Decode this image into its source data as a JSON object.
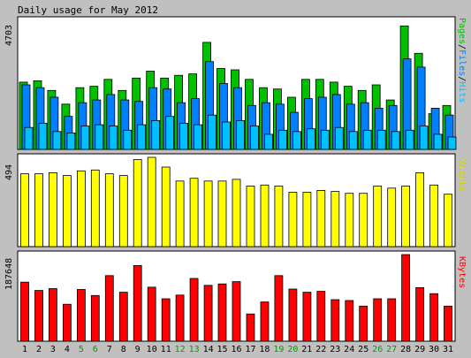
{
  "title": "Daily usage for May 2012",
  "colors": {
    "background": "#c0c0c0",
    "panel": "#ffffff",
    "pages": "#00c000",
    "files": "#0080ff",
    "hits": "#00c0ff",
    "visits": "#ffff00",
    "kbytes": "#ff0000",
    "weekend_label": "#00a000",
    "weekday_label": "#000000",
    "border": "#000000"
  },
  "chart_data": [
    {
      "type": "bar",
      "name": "hits-files-pages",
      "ymax_label": "4703",
      "ymax": 4703,
      "legend": {
        "pages": "Pages",
        "slash1": "/",
        "files": "Files",
        "slash2": "/",
        "hits": "Hits"
      },
      "series": [
        {
          "name": "Hits",
          "color_key": "pages",
          "values": [
            2450,
            2500,
            2150,
            1650,
            2250,
            2300,
            2550,
            2150,
            2600,
            2850,
            2600,
            2700,
            2750,
            3900,
            2950,
            2900,
            2550,
            2250,
            2200,
            1900,
            2550,
            2550,
            2450,
            2300,
            2150,
            2350,
            1800,
            4500,
            3500,
            1300,
            1600
          ]
        },
        {
          "name": "Files",
          "color_key": "files",
          "values": [
            2350,
            2250,
            1900,
            1200,
            1700,
            1800,
            2000,
            1800,
            1750,
            2250,
            2200,
            1700,
            1850,
            3200,
            2400,
            2250,
            1600,
            1700,
            1650,
            1350,
            1850,
            1900,
            2000,
            1650,
            1700,
            1500,
            1600,
            3300,
            3000,
            1500,
            1250
          ]
        },
        {
          "name": "Pages",
          "color_key": "hits",
          "values": [
            800,
            950,
            650,
            600,
            850,
            900,
            850,
            700,
            900,
            1050,
            1200,
            950,
            900,
            1250,
            1000,
            1050,
            850,
            550,
            700,
            650,
            750,
            700,
            800,
            650,
            700,
            700,
            650,
            700,
            850,
            550,
            450
          ]
        }
      ]
    },
    {
      "type": "bar",
      "name": "visits",
      "ymax_label": "494",
      "ymax": 494,
      "legend": "Visits",
      "series": [
        {
          "name": "Visits",
          "color_key": "visits",
          "values": [
            403,
            403,
            409,
            393,
            419,
            424,
            403,
            393,
            482,
            494,
            440,
            363,
            378,
            363,
            363,
            372,
            335,
            341,
            335,
            301,
            301,
            311,
            305,
            295,
            295,
            335,
            324,
            335,
            409,
            341,
            290
          ]
        }
      ]
    },
    {
      "type": "bar",
      "name": "kbytes",
      "ymax_label": "187648",
      "ymax": 187648,
      "legend": "KBytes",
      "series": [
        {
          "name": "KBytes",
          "color_key": "kbytes",
          "values": [
            128000,
            110000,
            114000,
            80000,
            112000,
            99000,
            142000,
            106000,
            164000,
            117000,
            92000,
            100000,
            136000,
            121000,
            124000,
            129000,
            59000,
            85000,
            142000,
            113000,
            106000,
            108000,
            90000,
            88000,
            76000,
            92000,
            92000,
            187648,
            116000,
            103000,
            76000
          ]
        }
      ]
    }
  ],
  "x_labels": [
    "1",
    "2",
    "3",
    "4",
    "5",
    "6",
    "7",
    "8",
    "9",
    "10",
    "11",
    "12",
    "13",
    "14",
    "15",
    "16",
    "17",
    "18",
    "19",
    "20",
    "21",
    "22",
    "23",
    "24",
    "25",
    "26",
    "27",
    "28",
    "29",
    "30",
    "31"
  ],
  "weekend_days": [
    5,
    6,
    12,
    13,
    19,
    20,
    26,
    27
  ]
}
